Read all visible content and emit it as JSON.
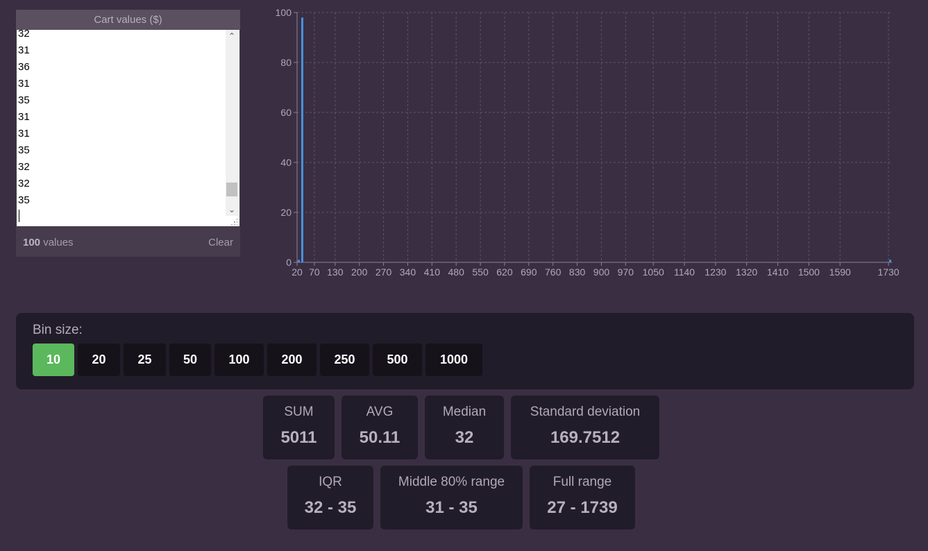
{
  "cart": {
    "header": "Cart values ($)",
    "lines": [
      "32",
      "31",
      "36",
      "31",
      "35",
      "31",
      "31",
      "35",
      "32",
      "32",
      "35"
    ],
    "count": "100",
    "count_suffix": " values",
    "clear_label": "Clear"
  },
  "chart_data": {
    "type": "bar",
    "x_ticks": [
      20,
      70,
      130,
      200,
      270,
      340,
      410,
      480,
      550,
      620,
      690,
      760,
      830,
      900,
      970,
      1050,
      1140,
      1230,
      1320,
      1410,
      1500,
      1590,
      1730
    ],
    "x_range": [
      20,
      1740
    ],
    "y_ticks": [
      0,
      20,
      40,
      60,
      80,
      100
    ],
    "ylim": [
      0,
      100
    ],
    "bin_size": 10,
    "bars": [
      {
        "x0": 20,
        "x1": 30,
        "count": 1
      },
      {
        "x0": 30,
        "x1": 40,
        "count": 98
      },
      {
        "x0": 40,
        "x1": 50,
        "count": 0
      },
      {
        "x0": 1730,
        "x1": 1740,
        "count": 1
      }
    ],
    "grid": true,
    "bar_color": "#4a90e2"
  },
  "bin": {
    "label": "Bin size:",
    "options": [
      "10",
      "20",
      "25",
      "50",
      "100",
      "200",
      "250",
      "500",
      "1000"
    ],
    "selected": "10"
  },
  "stats": {
    "sum": {
      "label": "SUM",
      "value": "5011"
    },
    "avg": {
      "label": "AVG",
      "value": "50.11"
    },
    "median": {
      "label": "Median",
      "value": "32"
    },
    "stdev": {
      "label": "Standard deviation",
      "value": "169.7512"
    },
    "iqr": {
      "label": "IQR",
      "value": "32 - 35"
    },
    "middle80": {
      "label": "Middle 80% range",
      "value": "31 - 35"
    },
    "full": {
      "label": "Full range",
      "value": "27 - 1739"
    }
  },
  "colors": {
    "background": "#3a2f42",
    "panel": "#211c29",
    "accent_green": "#5cb85c",
    "bar_blue": "#4a90e2"
  }
}
